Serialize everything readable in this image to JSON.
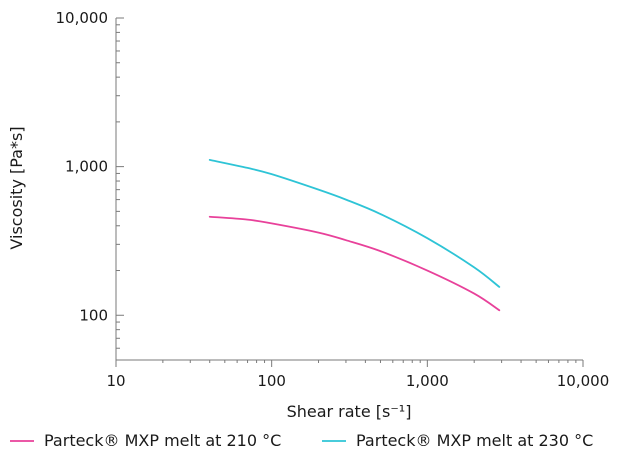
{
  "chart_data": {
    "type": "line",
    "title": "",
    "xlabel": "Shear rate [s⁻¹]",
    "ylabel": "Viscosity [Pa*s]",
    "xscale": "log",
    "yscale": "log",
    "xlim": [
      10,
      10000
    ],
    "ylim": [
      50,
      10000
    ],
    "x_ticks": [
      10,
      100,
      1000,
      10000
    ],
    "x_tick_labels": [
      "10",
      "100",
      "1,000",
      "10,000"
    ],
    "y_ticks": [
      100,
      1000,
      10000
    ],
    "y_tick_labels": [
      "100",
      "1,000",
      "10,000"
    ],
    "grid": false,
    "legend_position": "bottom",
    "series": [
      {
        "name": "Parteck® MXP melt at 210 °C",
        "color": "#e8419a",
        "x": [
          40,
          70,
          100,
          200,
          300,
          500,
          1000,
          2000,
          2900
        ],
        "y": [
          460,
          440,
          415,
          360,
          320,
          270,
          200,
          140,
          108
        ]
      },
      {
        "name": "Parteck® MXP melt at 230 °C",
        "color": "#2ec4d6",
        "x": [
          40,
          70,
          100,
          200,
          300,
          500,
          1000,
          2000,
          2900
        ],
        "y": [
          1110,
          980,
          890,
          700,
          600,
          480,
          330,
          210,
          155
        ]
      }
    ]
  }
}
